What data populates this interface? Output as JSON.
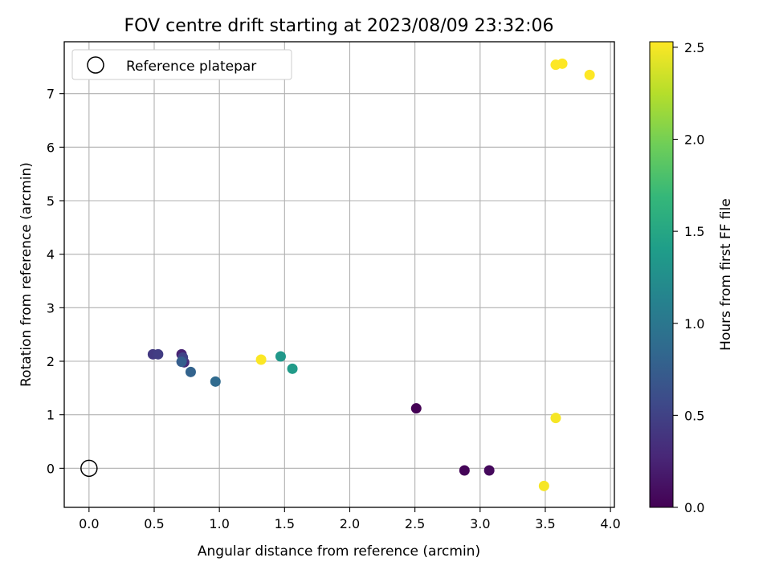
{
  "chart_data": {
    "type": "scatter",
    "title": "FOV centre drift starting at 2023/08/09 23:32:06",
    "xlabel": "Angular distance from reference (arcmin)",
    "ylabel": "Rotation from reference (arcmin)",
    "xlim": [
      -0.19,
      4.03
    ],
    "ylim": [
      -0.73,
      7.97
    ],
    "xticks": [
      0.0,
      0.5,
      1.0,
      1.5,
      2.0,
      2.5,
      3.0,
      3.5,
      4.0
    ],
    "xtick_labels": [
      "0.0",
      "0.5",
      "1.0",
      "1.5",
      "2.0",
      "2.5",
      "3.0",
      "3.5",
      "4.0"
    ],
    "yticks": [
      0,
      1,
      2,
      3,
      4,
      5,
      6,
      7
    ],
    "ytick_labels": [
      "0",
      "1",
      "2",
      "3",
      "4",
      "5",
      "6",
      "7"
    ],
    "grid": true,
    "legend": {
      "placement": "top-left",
      "entries": [
        "Reference platepar"
      ]
    },
    "reference_point": {
      "x": 0.0,
      "y": 0.0
    },
    "colorbar": {
      "label": "Hours from first FF file",
      "range": [
        0.0,
        2.53
      ],
      "ticks": [
        0.0,
        0.5,
        1.0,
        1.5,
        2.0,
        2.5
      ],
      "tick_labels": [
        "0.0",
        "0.5",
        "1.0",
        "1.5",
        "2.0",
        "2.5"
      ],
      "colormap": "viridis"
    },
    "points": [
      {
        "x": 2.51,
        "y": 1.12,
        "hours": 0.0
      },
      {
        "x": 2.88,
        "y": -0.04,
        "hours": 0.03
      },
      {
        "x": 3.07,
        "y": -0.04,
        "hours": 0.06
      },
      {
        "x": 0.71,
        "y": 2.13,
        "hours": 0.25
      },
      {
        "x": 0.73,
        "y": 1.98,
        "hours": 0.3
      },
      {
        "x": 0.49,
        "y": 2.13,
        "hours": 0.42
      },
      {
        "x": 0.53,
        "y": 2.13,
        "hours": 0.45
      },
      {
        "x": 0.72,
        "y": 2.07,
        "hours": 0.5
      },
      {
        "x": 0.71,
        "y": 1.99,
        "hours": 0.75
      },
      {
        "x": 0.78,
        "y": 1.8,
        "hours": 0.8
      },
      {
        "x": 0.97,
        "y": 1.62,
        "hours": 0.88
      },
      {
        "x": 1.47,
        "y": 2.09,
        "hours": 1.35
      },
      {
        "x": 1.56,
        "y": 1.86,
        "hours": 1.38
      },
      {
        "x": 1.32,
        "y": 2.03,
        "hours": 2.52
      },
      {
        "x": 3.49,
        "y": -0.33,
        "hours": 2.5
      },
      {
        "x": 3.58,
        "y": 0.94,
        "hours": 2.5
      },
      {
        "x": 3.58,
        "y": 7.54,
        "hours": 2.53
      },
      {
        "x": 3.63,
        "y": 7.56,
        "hours": 2.53
      },
      {
        "x": 3.84,
        "y": 7.35,
        "hours": 2.53
      }
    ]
  }
}
